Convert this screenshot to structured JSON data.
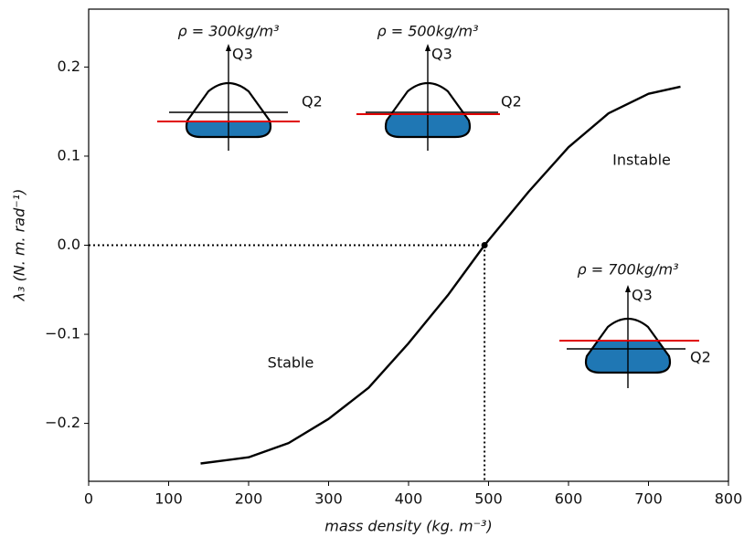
{
  "chart_data": {
    "type": "line",
    "x_label": "mass density (kg. m⁻³)",
    "y_label": "λ₃ (N. m. rad⁻¹)",
    "xlim": [
      0,
      800
    ],
    "ylim": [
      -0.265,
      0.265
    ],
    "xticks": [
      0,
      100,
      200,
      300,
      400,
      500,
      600,
      700,
      800
    ],
    "yticks": [
      {
        "value": -0.2,
        "label": "−0.2"
      },
      {
        "value": -0.1,
        "label": "−0.1"
      },
      {
        "value": 0,
        "label": "0.0"
      },
      0.1,
      0.2
    ],
    "series": [
      {
        "color": "#000000",
        "x": [
          140,
          200,
          250,
          300,
          350,
          400,
          450,
          495,
          550,
          600,
          650,
          700,
          740
        ],
        "values": [
          -0.245,
          -0.238,
          -0.222,
          -0.195,
          -0.16,
          -0.11,
          -0.055,
          0,
          0.06,
          0.11,
          0.148,
          0.17,
          0.178
        ]
      }
    ],
    "critical_point": {
      "x": 495,
      "y": 0
    },
    "region_labels": [
      "Stable",
      "Instable"
    ],
    "insets": [
      {
        "label": "ρ = 300kg/m³",
        "vertical_axis": "Q3",
        "horizontal_axis": "Q2"
      },
      {
        "label": "ρ = 500kg/m³",
        "vertical_axis": "Q3",
        "horizontal_axis": "Q2"
      },
      {
        "label": "ρ = 700kg/m³",
        "vertical_axis": "Q3",
        "horizontal_axis": "Q2"
      }
    ]
  }
}
